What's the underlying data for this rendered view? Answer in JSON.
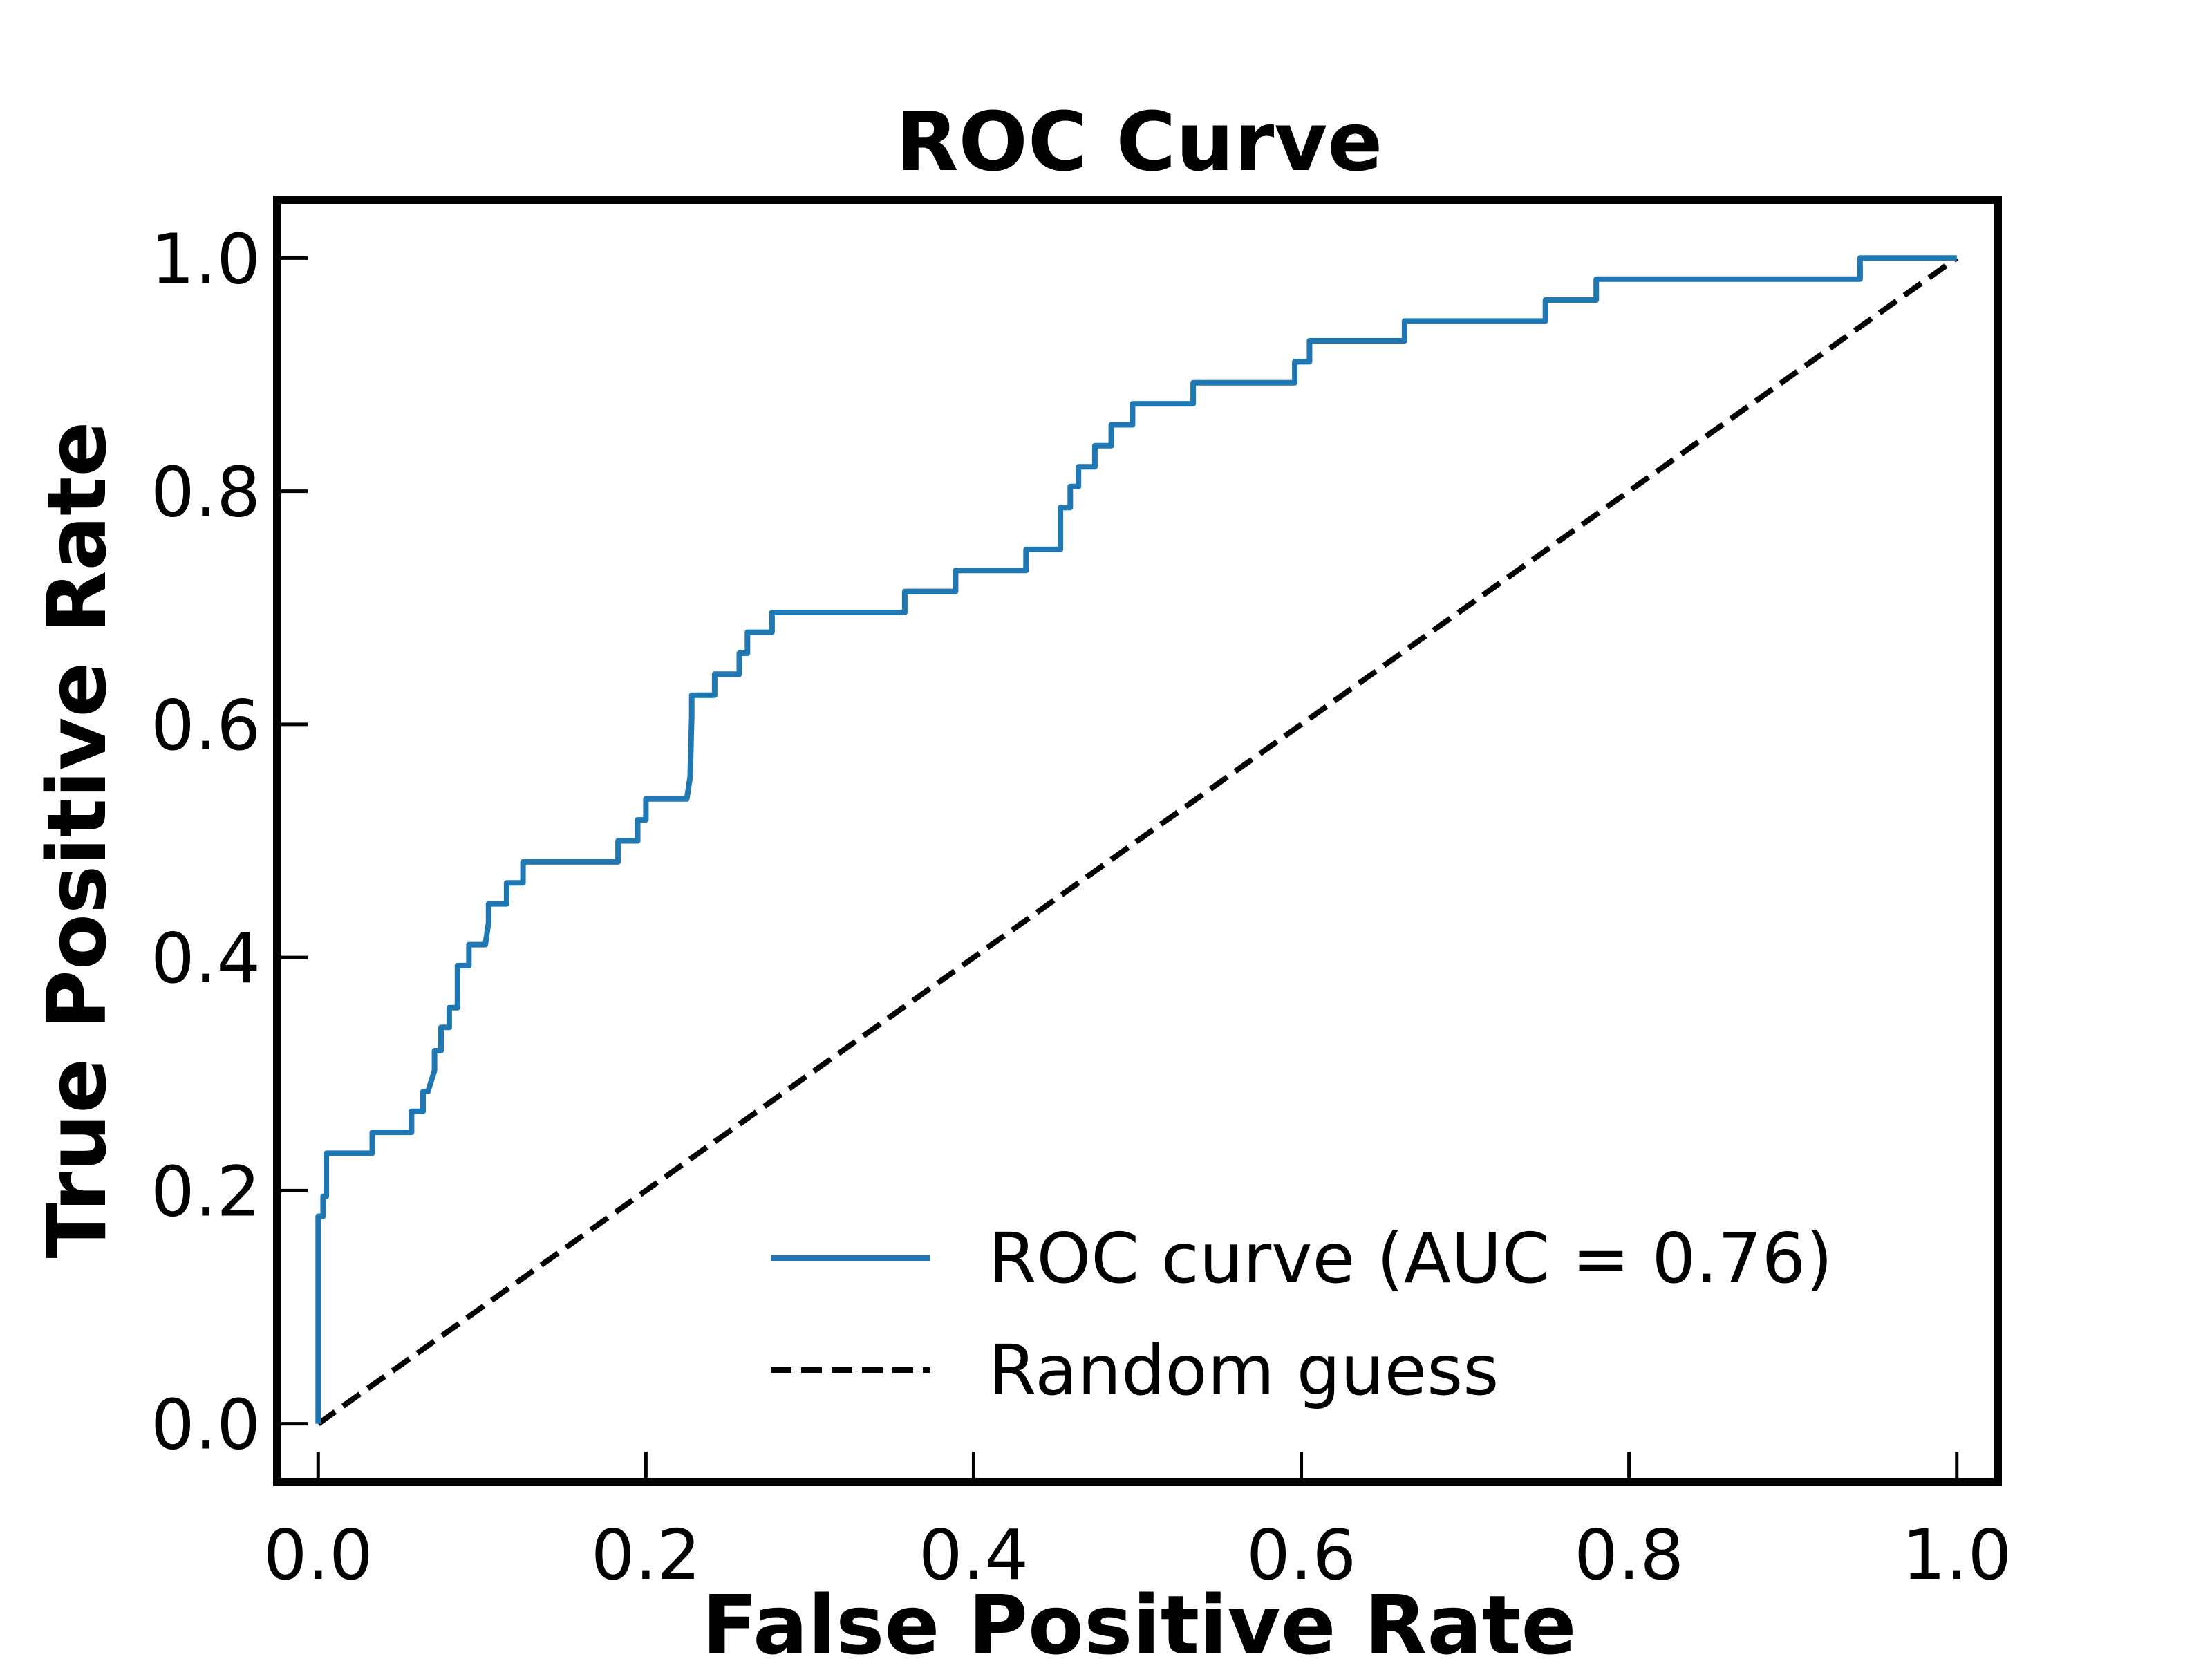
{
  "chart_data": {
    "type": "line",
    "title": "ROC Curve",
    "xlabel": "False Positive Rate",
    "ylabel": "True Positive Rate",
    "xlim": [
      -0.025,
      1.025
    ],
    "ylim": [
      -0.05,
      1.05
    ],
    "xticks": [
      "0.0",
      "0.2",
      "0.4",
      "0.6",
      "0.8",
      "1.0"
    ],
    "yticks": [
      "0.0",
      "0.2",
      "0.4",
      "0.6",
      "0.8",
      "1.0"
    ],
    "xtick_values": [
      0,
      0.2,
      0.4,
      0.6,
      0.8,
      1.0
    ],
    "ytick_values": [
      0,
      0.2,
      0.4,
      0.6,
      0.8,
      1.0
    ],
    "grid": false,
    "legend_position": "bottom-right",
    "series": [
      {
        "name": "ROC curve (AUC = 0.76)",
        "color": "#1f77b4",
        "style": "solid",
        "x": [
          0.0,
          0.0,
          0.003,
          0.003,
          0.005,
          0.005,
          0.033,
          0.033,
          0.057,
          0.057,
          0.064,
          0.064,
          0.067,
          0.071,
          0.071,
          0.075,
          0.075,
          0.08,
          0.08,
          0.085,
          0.085,
          0.092,
          0.092,
          0.102,
          0.104,
          0.104,
          0.115,
          0.115,
          0.125,
          0.125,
          0.131,
          0.131,
          0.183,
          0.183,
          0.195,
          0.195,
          0.2,
          0.2,
          0.225,
          0.227,
          0.228,
          0.228,
          0.242,
          0.242,
          0.257,
          0.257,
          0.262,
          0.262,
          0.277,
          0.277,
          0.282,
          0.282,
          0.358,
          0.358,
          0.361,
          0.361,
          0.389,
          0.389,
          0.392,
          0.392,
          0.432,
          0.432,
          0.434,
          0.434,
          0.453,
          0.453,
          0.459,
          0.459,
          0.464,
          0.464,
          0.471,
          0.471,
          0.474,
          0.474,
          0.484,
          0.484,
          0.487,
          0.487,
          0.497,
          0.497,
          0.502,
          0.502,
          0.531,
          0.531,
          0.534,
          0.534,
          0.596,
          0.596,
          0.6,
          0.6,
          0.605,
          0.605,
          0.658,
          0.658,
          0.663,
          0.663,
          0.747,
          0.747,
          0.749,
          0.749,
          0.78,
          0.78,
          0.784,
          0.784,
          0.941,
          0.941,
          1.0
        ],
        "y": [
          0.0,
          0.178,
          0.178,
          0.195,
          0.195,
          0.232,
          0.232,
          0.25,
          0.25,
          0.268,
          0.268,
          0.285,
          0.285,
          0.303,
          0.32,
          0.32,
          0.34,
          0.34,
          0.357,
          0.357,
          0.393,
          0.393,
          0.411,
          0.411,
          0.43,
          0.446,
          0.446,
          0.464,
          0.464,
          0.482,
          0.482,
          0.482,
          0.482,
          0.5,
          0.5,
          0.518,
          0.518,
          0.536,
          0.536,
          0.555,
          0.607,
          0.625,
          0.625,
          0.643,
          0.643,
          0.661,
          0.661,
          0.679,
          0.679,
          0.696,
          0.696,
          0.696,
          0.696,
          0.714,
          0.714,
          0.714,
          0.714,
          0.732,
          0.732,
          0.732,
          0.732,
          0.75,
          0.75,
          0.75,
          0.75,
          0.786,
          0.786,
          0.804,
          0.804,
          0.821,
          0.821,
          0.821,
          0.821,
          0.839,
          0.839,
          0.857,
          0.857,
          0.857,
          0.857,
          0.875,
          0.875,
          0.875,
          0.875,
          0.875,
          0.875,
          0.893,
          0.893,
          0.911,
          0.911,
          0.911,
          0.911,
          0.929,
          0.929,
          0.929,
          0.929,
          0.946,
          0.946,
          0.946,
          0.946,
          0.964,
          0.964,
          0.982,
          0.982,
          0.982,
          0.982,
          1.0,
          1.0
        ]
      },
      {
        "name": "Random guess",
        "color": "#000000",
        "style": "dashed",
        "x": [
          0,
          1
        ],
        "y": [
          0,
          1
        ]
      }
    ]
  }
}
